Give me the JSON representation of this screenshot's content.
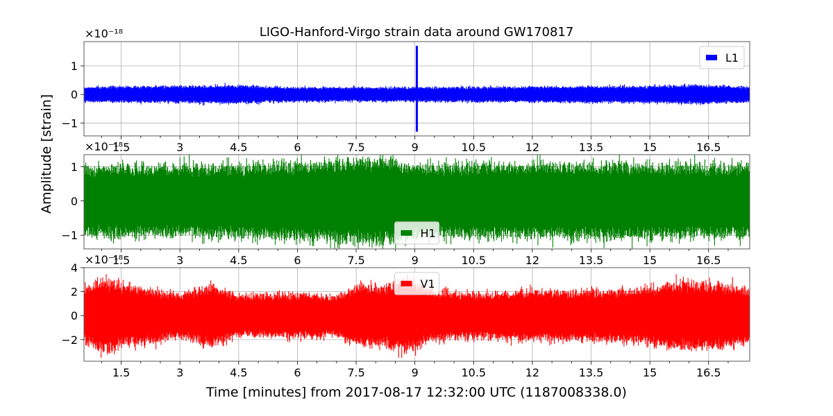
{
  "chart_data": {
    "type": "line",
    "title": "LIGO-Hanford-Virgo strain data around GW170817",
    "xlabel": "Time [minutes] from 2017-08-17 12:32:00 UTC (1187008338.0)",
    "ylabel": "Amplitude [strain]",
    "xlim": [
      0.55,
      17.55
    ],
    "xticks": [
      1.5,
      3,
      4.5,
      6,
      7.5,
      9,
      10.5,
      12,
      13.5,
      15,
      16.5
    ],
    "xtick_labels": [
      "1.5",
      "3",
      "4.5",
      "6",
      "7.5",
      "9",
      "10.5",
      "12",
      "13.5",
      "15",
      "16.5"
    ],
    "grid": true,
    "panels": [
      {
        "name": "L1",
        "color": "#0000ff",
        "offset_text": "×10⁻¹⁸",
        "ylim": [
          -1.45,
          1.85
        ],
        "yticks": [
          -1,
          0,
          1
        ],
        "ytick_labels": [
          "−1",
          "0",
          "1"
        ],
        "legend_placement": "upper right",
        "noise_envelope": 0.28,
        "envelope_keypoints": [
          [
            0.55,
            0.25
          ],
          [
            2.0,
            0.27
          ],
          [
            4.5,
            0.3
          ],
          [
            6.0,
            0.24
          ],
          [
            9.0,
            0.24
          ],
          [
            12.0,
            0.26
          ],
          [
            15.0,
            0.28
          ],
          [
            16.3,
            0.32
          ],
          [
            17.55,
            0.25
          ]
        ],
        "spike": {
          "x": 9.05,
          "max": 1.7,
          "min": -1.3
        }
      },
      {
        "name": "H1",
        "color": "#008000",
        "offset_text": "×10⁻¹⁸",
        "ylim": [
          -1.4,
          1.35
        ],
        "yticks": [
          -1,
          0,
          1
        ],
        "ytick_labels": [
          "−1",
          "0",
          "1"
        ],
        "legend_placement": "lower center",
        "noise_envelope": 1.0,
        "envelope_keypoints": [
          [
            0.55,
            0.98
          ],
          [
            4.5,
            1.0
          ],
          [
            8.3,
            1.2
          ],
          [
            9.0,
            1.0
          ],
          [
            13.0,
            1.05
          ],
          [
            17.55,
            1.0
          ]
        ]
      },
      {
        "name": "V1",
        "color": "#ff0000",
        "offset_text": "×10⁻¹⁸",
        "ylim": [
          -3.8,
          4.0
        ],
        "yticks": [
          -2,
          0,
          2,
          4
        ],
        "ytick_labels": [
          "−2",
          "0",
          "2",
          "4"
        ],
        "legend_placement": "upper center",
        "noise_envelope": 2.0,
        "envelope_keypoints": [
          [
            0.55,
            2.0
          ],
          [
            1.0,
            3.0
          ],
          [
            1.5,
            2.5
          ],
          [
            2.5,
            2.0
          ],
          [
            3.0,
            1.7
          ],
          [
            3.8,
            2.5
          ],
          [
            4.5,
            1.6
          ],
          [
            6.0,
            1.8
          ],
          [
            7.0,
            1.6
          ],
          [
            7.6,
            2.5
          ],
          [
            8.2,
            2.3
          ],
          [
            8.7,
            3.0
          ],
          [
            9.5,
            2.0
          ],
          [
            10.5,
            1.8
          ],
          [
            12.0,
            2.0
          ],
          [
            13.5,
            2.0
          ],
          [
            15.0,
            2.2
          ],
          [
            15.5,
            2.6
          ],
          [
            16.5,
            2.7
          ],
          [
            17.55,
            2.2
          ]
        ]
      }
    ]
  }
}
